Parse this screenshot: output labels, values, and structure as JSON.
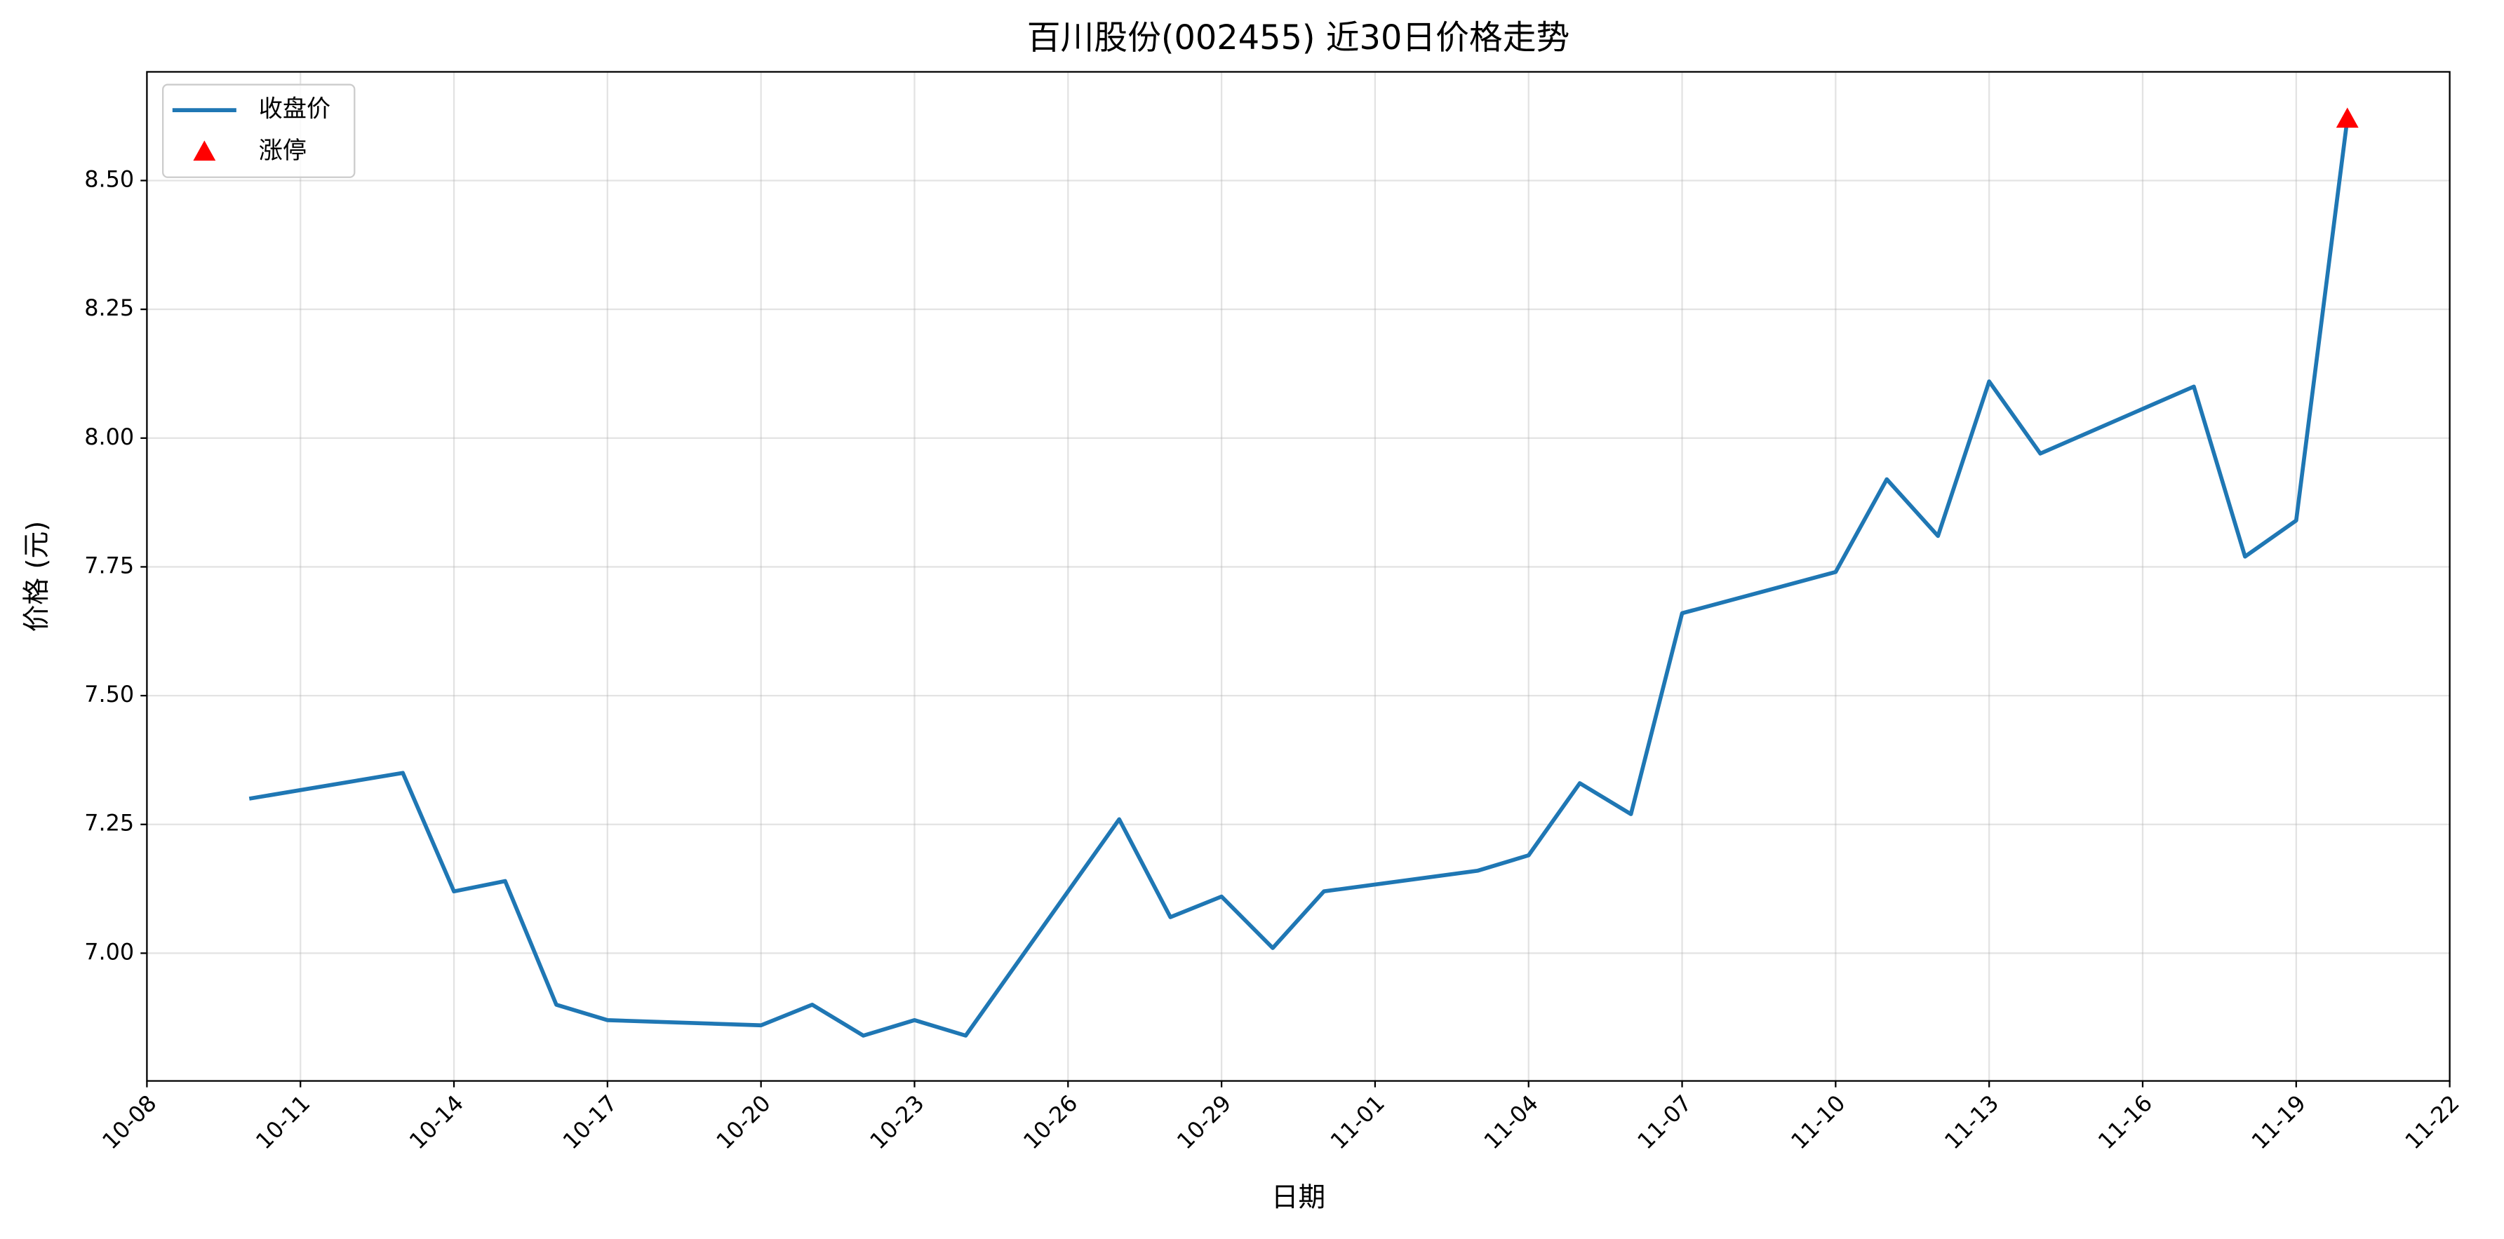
{
  "chart_data": {
    "type": "line",
    "title": "百川股份(002455) 近30日价格走势",
    "x_label": "日期",
    "y_label": "价格 (元)",
    "x": [
      "10-10",
      "10-13",
      "10-14",
      "10-15",
      "10-16",
      "10-17",
      "10-20",
      "10-21",
      "10-22",
      "10-23",
      "10-24",
      "10-27",
      "10-28",
      "10-29",
      "10-30",
      "10-31",
      "11-03",
      "11-04",
      "11-05",
      "11-06",
      "11-07",
      "11-10",
      "11-11",
      "11-12",
      "11-13",
      "11-14",
      "11-17",
      "11-18",
      "11-19",
      "11-20"
    ],
    "series": [
      {
        "name": "收盘价",
        "color": "#1f77b4",
        "values": [
          7.3,
          7.35,
          7.12,
          7.14,
          6.9,
          6.87,
          6.86,
          6.9,
          6.84,
          6.87,
          6.84,
          7.26,
          7.07,
          7.11,
          7.01,
          7.12,
          7.16,
          7.19,
          7.33,
          7.27,
          7.66,
          7.74,
          7.92,
          7.81,
          8.11,
          7.97,
          8.1,
          7.77,
          7.84,
          8.62
        ]
      },
      {
        "name": "涨停",
        "color": "#ff0000",
        "marker": "triangle",
        "x": [
          "11-20"
        ],
        "values": [
          8.62
        ]
      }
    ],
    "xlim": [
      "10-08",
      "11-22"
    ],
    "xticks": [
      "10-08",
      "10-11",
      "10-14",
      "10-17",
      "10-20",
      "10-23",
      "10-26",
      "10-29",
      "11-01",
      "11-04",
      "11-07",
      "11-10",
      "11-13",
      "11-16",
      "11-19",
      "11-22"
    ],
    "ylim": [
      6.752,
      8.711
    ],
    "yticks": [
      {
        "value": 7,
        "label": "7.00"
      },
      {
        "value": 7.25,
        "label": "7.25"
      },
      {
        "value": 7.5,
        "label": "7.50"
      },
      {
        "value": 7.75,
        "label": "7.75"
      },
      {
        "value": 8,
        "label": "8.00"
      },
      {
        "value": 8.25,
        "label": "8.25"
      },
      {
        "value": 8.5,
        "label": "8.50"
      }
    ],
    "grid": true,
    "legend": "upper-left"
  }
}
